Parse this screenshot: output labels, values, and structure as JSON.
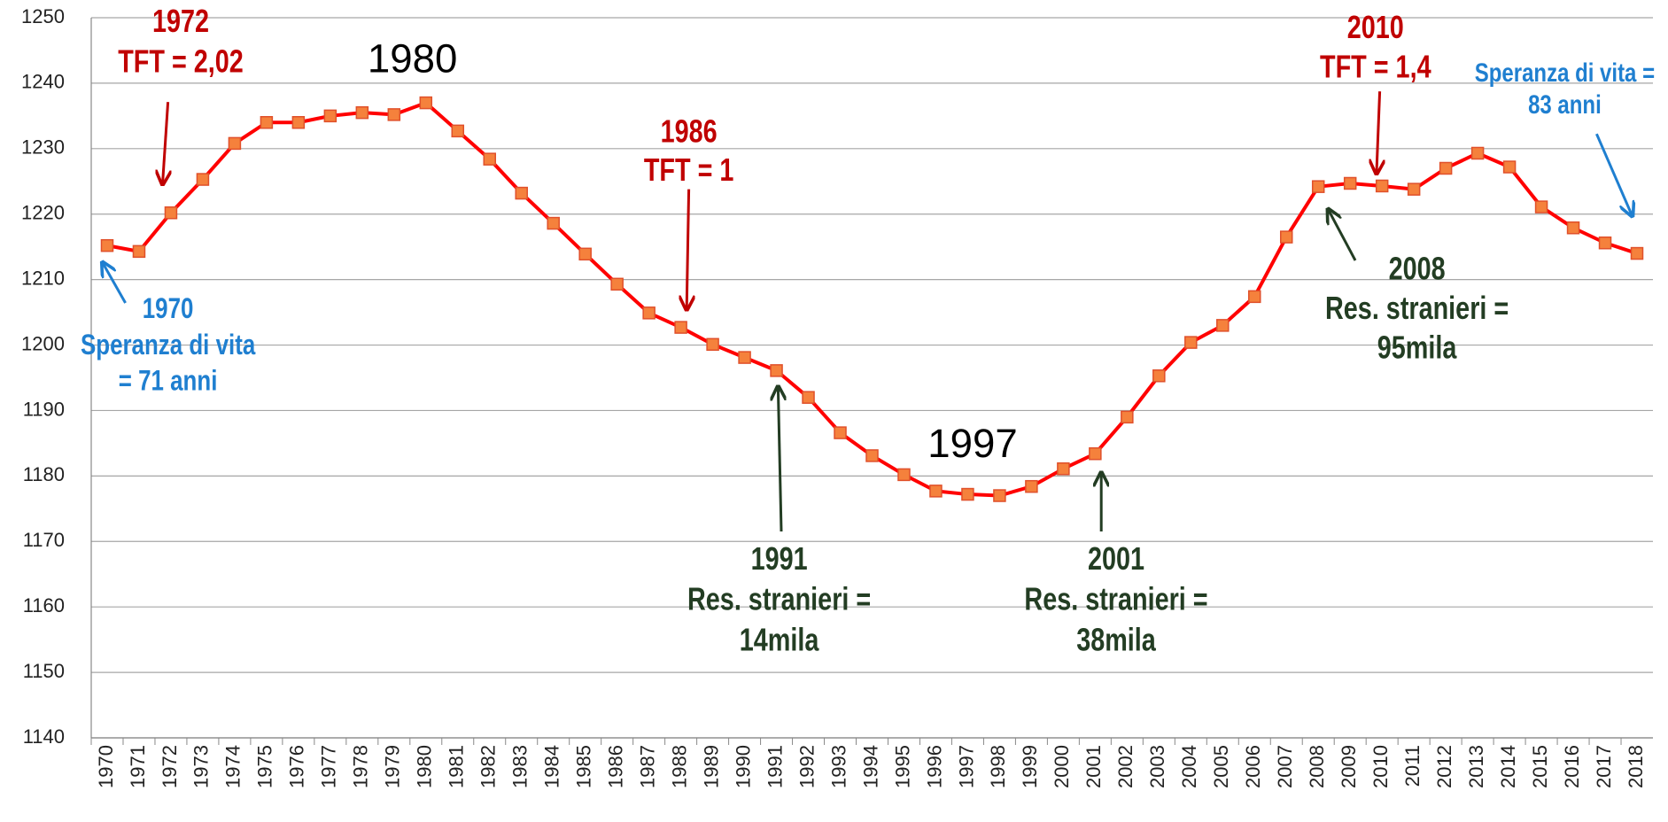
{
  "chart_data": {
    "type": "line",
    "categories": [
      "1970",
      "1971",
      "1972",
      "1973",
      "1974",
      "1975",
      "1976",
      "1977",
      "1978",
      "1979",
      "1980",
      "1981",
      "1982",
      "1983",
      "1984",
      "1985",
      "1986",
      "1987",
      "1988",
      "1989",
      "1990",
      "1991",
      "1992",
      "1993",
      "1994",
      "1995",
      "1996",
      "1997",
      "1998",
      "1999",
      "2000",
      "2001",
      "2002",
      "2003",
      "2004",
      "2005",
      "2006",
      "2007",
      "2008",
      "2009",
      "2010",
      "2011",
      "2012",
      "2013",
      "2014",
      "2015",
      "2016",
      "2017",
      "2018"
    ],
    "series": [
      {
        "color": "#ff0000",
        "marker_color": "#f5813c",
        "values": [
          1215.2,
          1214.3,
          1220.2,
          1225.3,
          1230.8,
          1234.0,
          1234.0,
          1235.0,
          1235.5,
          1235.2,
          1237.0,
          1232.7,
          1228.4,
          1223.2,
          1218.6,
          1213.9,
          1209.3,
          1204.9,
          1202.7,
          1200.1,
          1198.1,
          1196.1,
          1192.0,
          1186.6,
          1183.1,
          1180.2,
          1177.7,
          1177.2,
          1177.0,
          1178.4,
          1181.1,
          1183.4,
          1189.0,
          1195.3,
          1200.4,
          1203.0,
          1207.4,
          1216.5,
          1224.2,
          1224.7,
          1224.3,
          1223.8,
          1227.0,
          1229.3,
          1227.2,
          1221.1,
          1217.9,
          1215.6,
          1214.0
        ]
      }
    ],
    "ylim": [
      1140,
      1250
    ],
    "yticks": [
      1140,
      1150,
      1160,
      1170,
      1180,
      1190,
      1200,
      1210,
      1220,
      1230,
      1240,
      1250
    ],
    "grid": true,
    "annotations": [
      {
        "lines": [
          "1972",
          "TFT = 2,02"
        ],
        "color": "#c00000"
      },
      {
        "lines": [
          "1980"
        ],
        "color": "#000000"
      },
      {
        "lines": [
          "1986",
          "TFT = 1"
        ],
        "color": "#c00000"
      },
      {
        "lines": [
          "1970",
          "Speranza di vita",
          "= 71 anni"
        ],
        "color": "#1f7fd0"
      },
      {
        "lines": [
          "1991",
          "Res. stranieri =",
          "14mila"
        ],
        "color": "#233d23"
      },
      {
        "lines": [
          "1997"
        ],
        "color": "#000000"
      },
      {
        "lines": [
          "2001",
          "Res. stranieri =",
          "38mila"
        ],
        "color": "#233d23"
      },
      {
        "lines": [
          "2010",
          "TFT = 1,4"
        ],
        "color": "#c00000"
      },
      {
        "lines": [
          "Speranza di vita =",
          "83 anni"
        ],
        "color": "#1f7fd0"
      },
      {
        "lines": [
          "2008",
          "Res. stranieri =",
          "95mila"
        ],
        "color": "#233d23"
      }
    ]
  }
}
